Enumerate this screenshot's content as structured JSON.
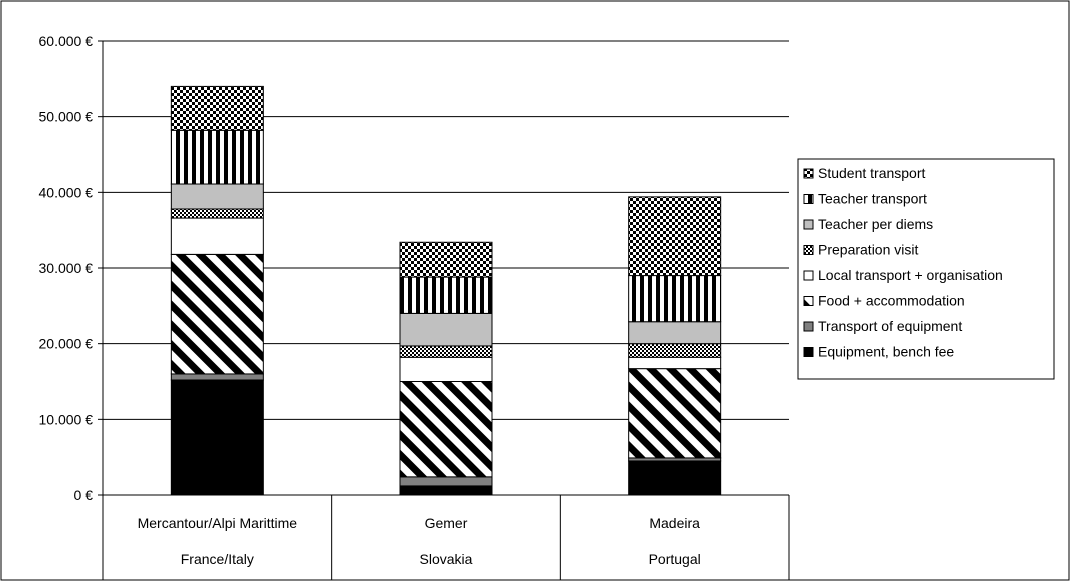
{
  "chart_data": {
    "type": "bar",
    "stacked": true,
    "title": "",
    "xlabel": "",
    "ylabel": "",
    "ylim": [
      0,
      60000
    ],
    "y_ticks": [
      "0 €",
      "10.000 €",
      "20.000 €",
      "30.000 €",
      "40.000 €",
      "50.000 €",
      "60.000 €"
    ],
    "y_tick_values": [
      0,
      10000,
      20000,
      30000,
      40000,
      50000,
      60000
    ],
    "grid": true,
    "legend_position": "right",
    "categories": [
      {
        "site": "Mercantour/Alpi Marittime",
        "country": "France/Italy"
      },
      {
        "site": "Gemer",
        "country": "Slovakia"
      },
      {
        "site": "Madeira",
        "country": "Portugal"
      }
    ],
    "series": [
      {
        "name": "Equipment, bench fee",
        "pattern": "solid-black",
        "values": [
          15200,
          1200,
          4500
        ]
      },
      {
        "name": "Transport of equipment",
        "pattern": "solid-gray",
        "values": [
          800,
          1200,
          400
        ]
      },
      {
        "name": "Food + accommodation",
        "pattern": "diagonal-stripes",
        "values": [
          15800,
          12600,
          11800
        ]
      },
      {
        "name": "Local transport + organisation",
        "pattern": "white",
        "values": [
          4800,
          3200,
          1500
        ]
      },
      {
        "name": "Preparation visit",
        "pattern": "small-checker",
        "values": [
          1200,
          1500,
          1800
        ]
      },
      {
        "name": "Teacher per diems",
        "pattern": "light-gray",
        "values": [
          3300,
          4300,
          2900
        ]
      },
      {
        "name": "Teacher transport",
        "pattern": "vertical-stripes",
        "values": [
          7100,
          4800,
          6100
        ]
      },
      {
        "name": "Student transport",
        "pattern": "checker",
        "values": [
          5800,
          4600,
          10400
        ]
      }
    ],
    "legend_order": [
      "Student transport",
      "Teacher transport",
      "Teacher per diems",
      "Preparation visit",
      "Local transport + organisation",
      "Food + accommodation",
      "Transport of equipment",
      "Equipment, bench fee"
    ]
  }
}
